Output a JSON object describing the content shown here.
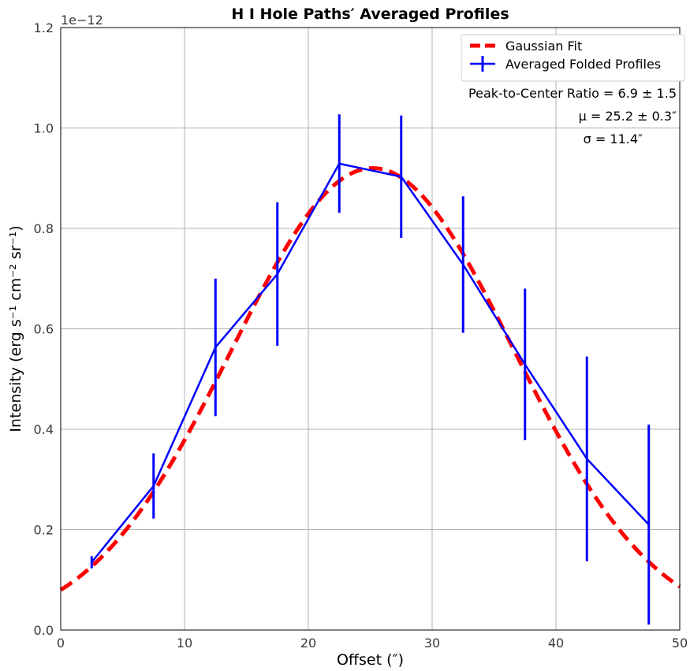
{
  "chart_data": {
    "type": "line",
    "title": "H I Hole Paths′ Averaged Profiles",
    "xlabel": "Offset (″)",
    "ylabel": "Intensity (erg s⁻¹ cm⁻² sr⁻¹)",
    "y_offset_label": "1e−12",
    "xlim": [
      0,
      50
    ],
    "ylim": [
      0.0,
      1.2
    ],
    "x_ticks": [
      0,
      10,
      20,
      30,
      40,
      50
    ],
    "x_tick_labels": [
      "0",
      "10",
      "20",
      "30",
      "40",
      "50"
    ],
    "y_ticks": [
      0.0,
      0.2,
      0.4,
      0.6,
      0.8,
      1.0,
      1.2
    ],
    "y_tick_labels": [
      "0.0",
      "0.2",
      "0.4",
      "0.6",
      "0.8",
      "1.0",
      "1.2"
    ],
    "grid": true,
    "legend_position": "top-right",
    "series": [
      {
        "name": "Gaussian Fit",
        "style": "dashed",
        "color": "#ff0000",
        "gaussian": {
          "mu": 25.2,
          "sigma": 11.4,
          "amplitude": 0.92
        }
      },
      {
        "name": "Averaged Folded Profiles",
        "style": "solid-with-errorbars",
        "color": "#0000ff",
        "x": [
          2.5,
          7.5,
          12.5,
          17.5,
          22.5,
          27.5,
          32.5,
          37.5,
          42.5,
          47.5
        ],
        "y": [
          0.135,
          0.287,
          0.563,
          0.709,
          0.929,
          0.903,
          0.728,
          0.529,
          0.341,
          0.21
        ],
        "yerr": [
          0.012,
          0.065,
          0.137,
          0.143,
          0.098,
          0.122,
          0.136,
          0.151,
          0.204,
          0.199
        ]
      }
    ],
    "annotations": [
      "Peak-to-Center Ratio = 6.9 ± 1.5",
      "μ = 25.2 ± 0.3″",
      "σ = 11.4″"
    ]
  }
}
